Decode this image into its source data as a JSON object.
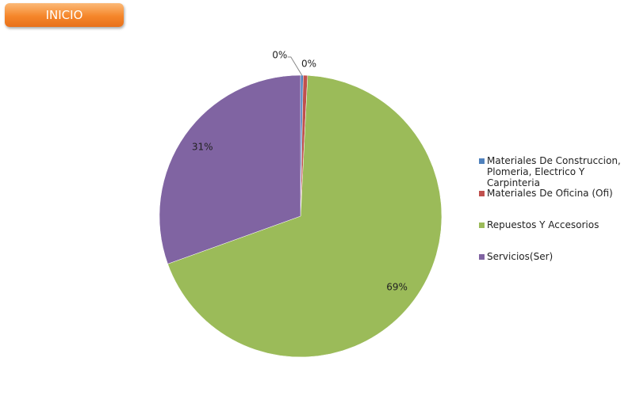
{
  "button": {
    "label": "INICIO"
  },
  "chart_data": {
    "type": "pie",
    "categories": [
      "Materiales De Construccion, Plomeria, Electrico Y Carpinteria",
      "Materiales De Oficina (Ofi)",
      "Repuestos Y Accesorios",
      "Servicios(Ser)"
    ],
    "values": [
      0.3,
      0.5,
      68.7,
      30.5
    ],
    "value_labels": [
      "0%",
      "0%",
      "69%",
      "31%"
    ],
    "colors": [
      "#4f81bd",
      "#c0504d",
      "#9bbb59",
      "#8064a2"
    ],
    "legend": "right"
  }
}
